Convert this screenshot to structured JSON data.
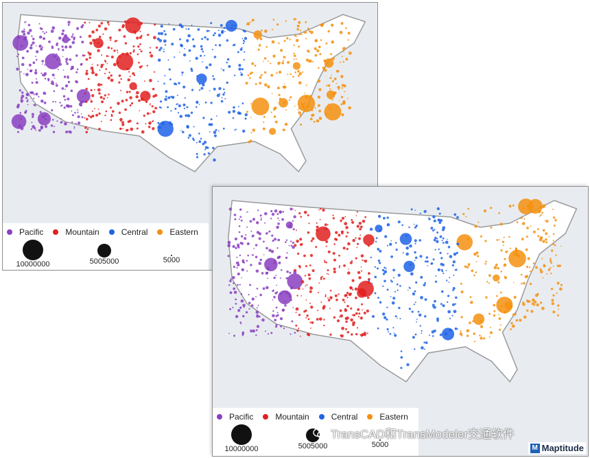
{
  "legend": {
    "regions": [
      {
        "label": "Pacific",
        "color": "#8a3fc1"
      },
      {
        "label": "Mountain",
        "color": "#e0201f"
      },
      {
        "label": "Central",
        "color": "#1f63e6"
      },
      {
        "label": "Eastern",
        "color": "#f5900f"
      }
    ],
    "sizes": [
      {
        "label": "10000000",
        "value": 10000000
      },
      {
        "label": "5005000",
        "value": 5005000
      },
      {
        "label": "5000",
        "value": 5000
      }
    ]
  },
  "watermark": {
    "text": "TransCAD和TransModeler交通软件"
  },
  "brand": {
    "name": "Maptitude"
  }
}
